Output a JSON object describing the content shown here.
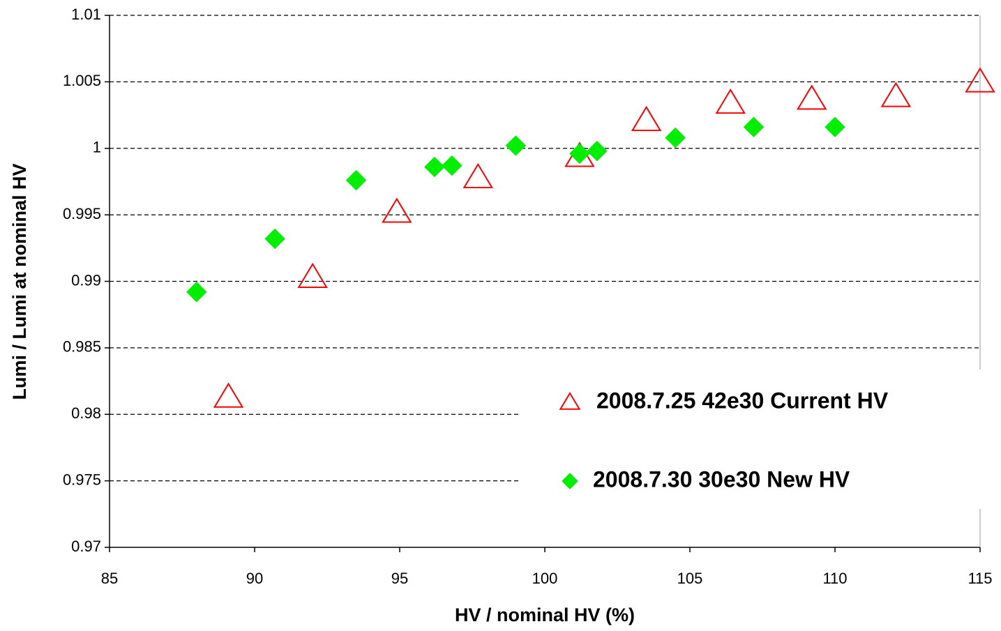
{
  "chart_data": {
    "type": "scatter",
    "xlabel": "HV / nominal HV  (%)",
    "ylabel": "Lumi / Lumi at nominal HV",
    "xlim": [
      85,
      115
    ],
    "xticks": [
      85,
      90,
      95,
      100,
      105,
      110,
      115
    ],
    "ylim": [
      0.97,
      1.01
    ],
    "yticks": [
      0.97,
      0.975,
      0.98,
      0.985,
      0.99,
      0.995,
      1,
      1.005,
      1.01
    ],
    "grid": true,
    "legend": "lower right",
    "series": [
      {
        "name": "2008.7.25 42e30 Current HV",
        "color": "#ff0000",
        "marker": "triangle-open",
        "x": [
          89.1,
          92.0,
          94.9,
          97.7,
          101.2,
          103.5,
          106.4,
          109.2,
          112.1,
          115
        ],
        "values": [
          0.9813,
          0.9903,
          0.9952,
          0.9978,
          0.9994,
          1.0021,
          1.0034,
          1.0037,
          1.0039,
          1.005
        ]
      },
      {
        "name": "2008.7.30 30e30 New HV",
        "color": "#00ee00",
        "marker": "diamond",
        "x": [
          88.0,
          90.7,
          93.5,
          96.2,
          96.8,
          99.0,
          101.2,
          101.8,
          104.5,
          107.2,
          110.0
        ],
        "values": [
          0.9892,
          0.9932,
          0.9976,
          0.9986,
          0.9987,
          1.0002,
          0.9996,
          0.9998,
          1.0008,
          1.0016,
          1.0016
        ]
      }
    ]
  }
}
